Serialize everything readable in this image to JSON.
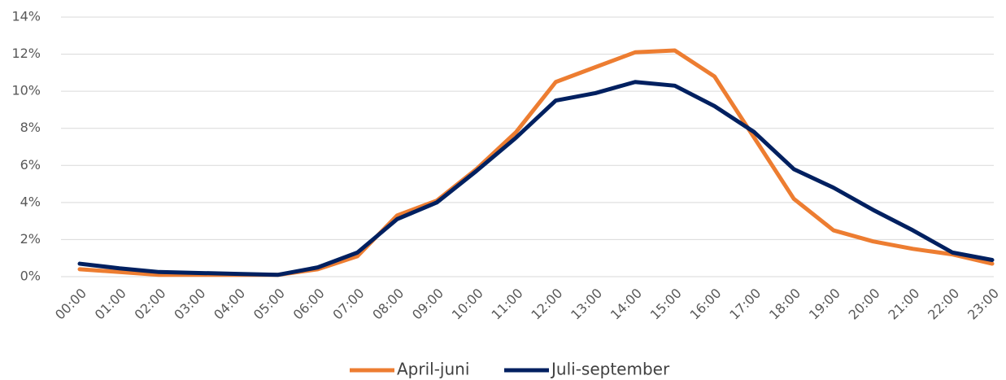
{
  "chart_data": {
    "type": "line",
    "categories": [
      "00:00",
      "01:00",
      "02:00",
      "03:00",
      "04:00",
      "05:00",
      "06:00",
      "07:00",
      "08:00",
      "09:00",
      "10:00",
      "11:00",
      "12:00",
      "13:00",
      "14:00",
      "15:00",
      "16:00",
      "17:00",
      "18:00",
      "19:00",
      "20:00",
      "21:00",
      "22:00",
      "23:00"
    ],
    "series": [
      {
        "name": "April-juni",
        "color": "#ed7d31",
        "values": [
          0.4,
          0.25,
          0.1,
          0.1,
          0.1,
          0.1,
          0.4,
          1.1,
          3.3,
          4.1,
          5.8,
          7.8,
          10.5,
          11.3,
          12.1,
          12.2,
          10.8,
          7.5,
          4.2,
          2.5,
          1.9,
          1.5,
          1.2,
          0.7
        ]
      },
      {
        "name": "Juli-september",
        "color": "#002060",
        "values": [
          0.7,
          0.45,
          0.25,
          0.2,
          0.15,
          0.1,
          0.5,
          1.3,
          3.1,
          4.0,
          5.7,
          7.5,
          9.5,
          9.9,
          10.5,
          10.3,
          9.2,
          7.8,
          5.8,
          4.8,
          3.6,
          2.5,
          1.3,
          0.9
        ]
      }
    ],
    "ylim": [
      0,
      14
    ],
    "yticks": [
      {
        "value": 0,
        "label": "0%"
      },
      {
        "value": 2,
        "label": "2%"
      },
      {
        "value": 4,
        "label": "4%"
      },
      {
        "value": 6,
        "label": "6%"
      },
      {
        "value": 8,
        "label": "8%"
      },
      {
        "value": 10,
        "label": "10%"
      },
      {
        "value": 12,
        "label": "12%"
      },
      {
        "value": 14,
        "label": "14%"
      }
    ],
    "grid": true,
    "legend": "bottom"
  }
}
